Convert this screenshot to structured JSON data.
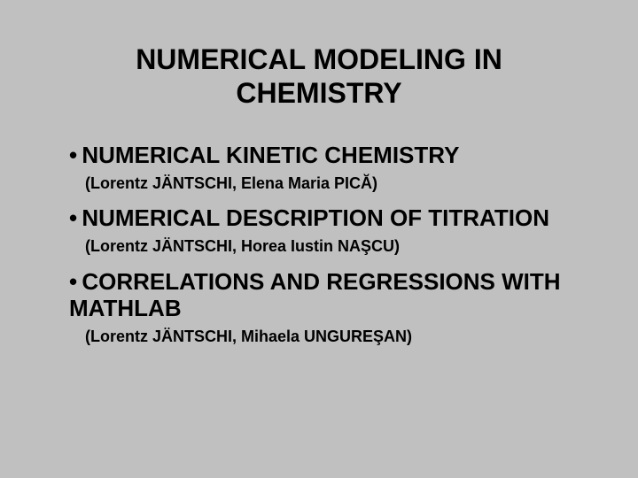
{
  "colors": {
    "background": "#c0c0c0",
    "text": "#000000"
  },
  "typography": {
    "title_fontsize": 32,
    "heading_fontsize": 26,
    "sub_fontsize": 18,
    "font_family": "Arial",
    "weight": "bold"
  },
  "title": "NUMERICAL MODELING IN CHEMISTRY",
  "bullet_char": "•",
  "items": [
    {
      "heading": "NUMERICAL KINETIC CHEMISTRY",
      "sub": "(Lorentz JÄNTSCHI, Elena Maria PICĂ)"
    },
    {
      "heading": "NUMERICAL DESCRIPTION OF TITRATION",
      "sub": "(Lorentz JÄNTSCHI, Horea Iustin NAŞCU)"
    },
    {
      "heading": "CORRELATIONS AND REGRESSIONS WITH MATHLAB",
      "sub": "(Lorentz JÄNTSCHI, Mihaela UNGUREŞAN)"
    }
  ]
}
